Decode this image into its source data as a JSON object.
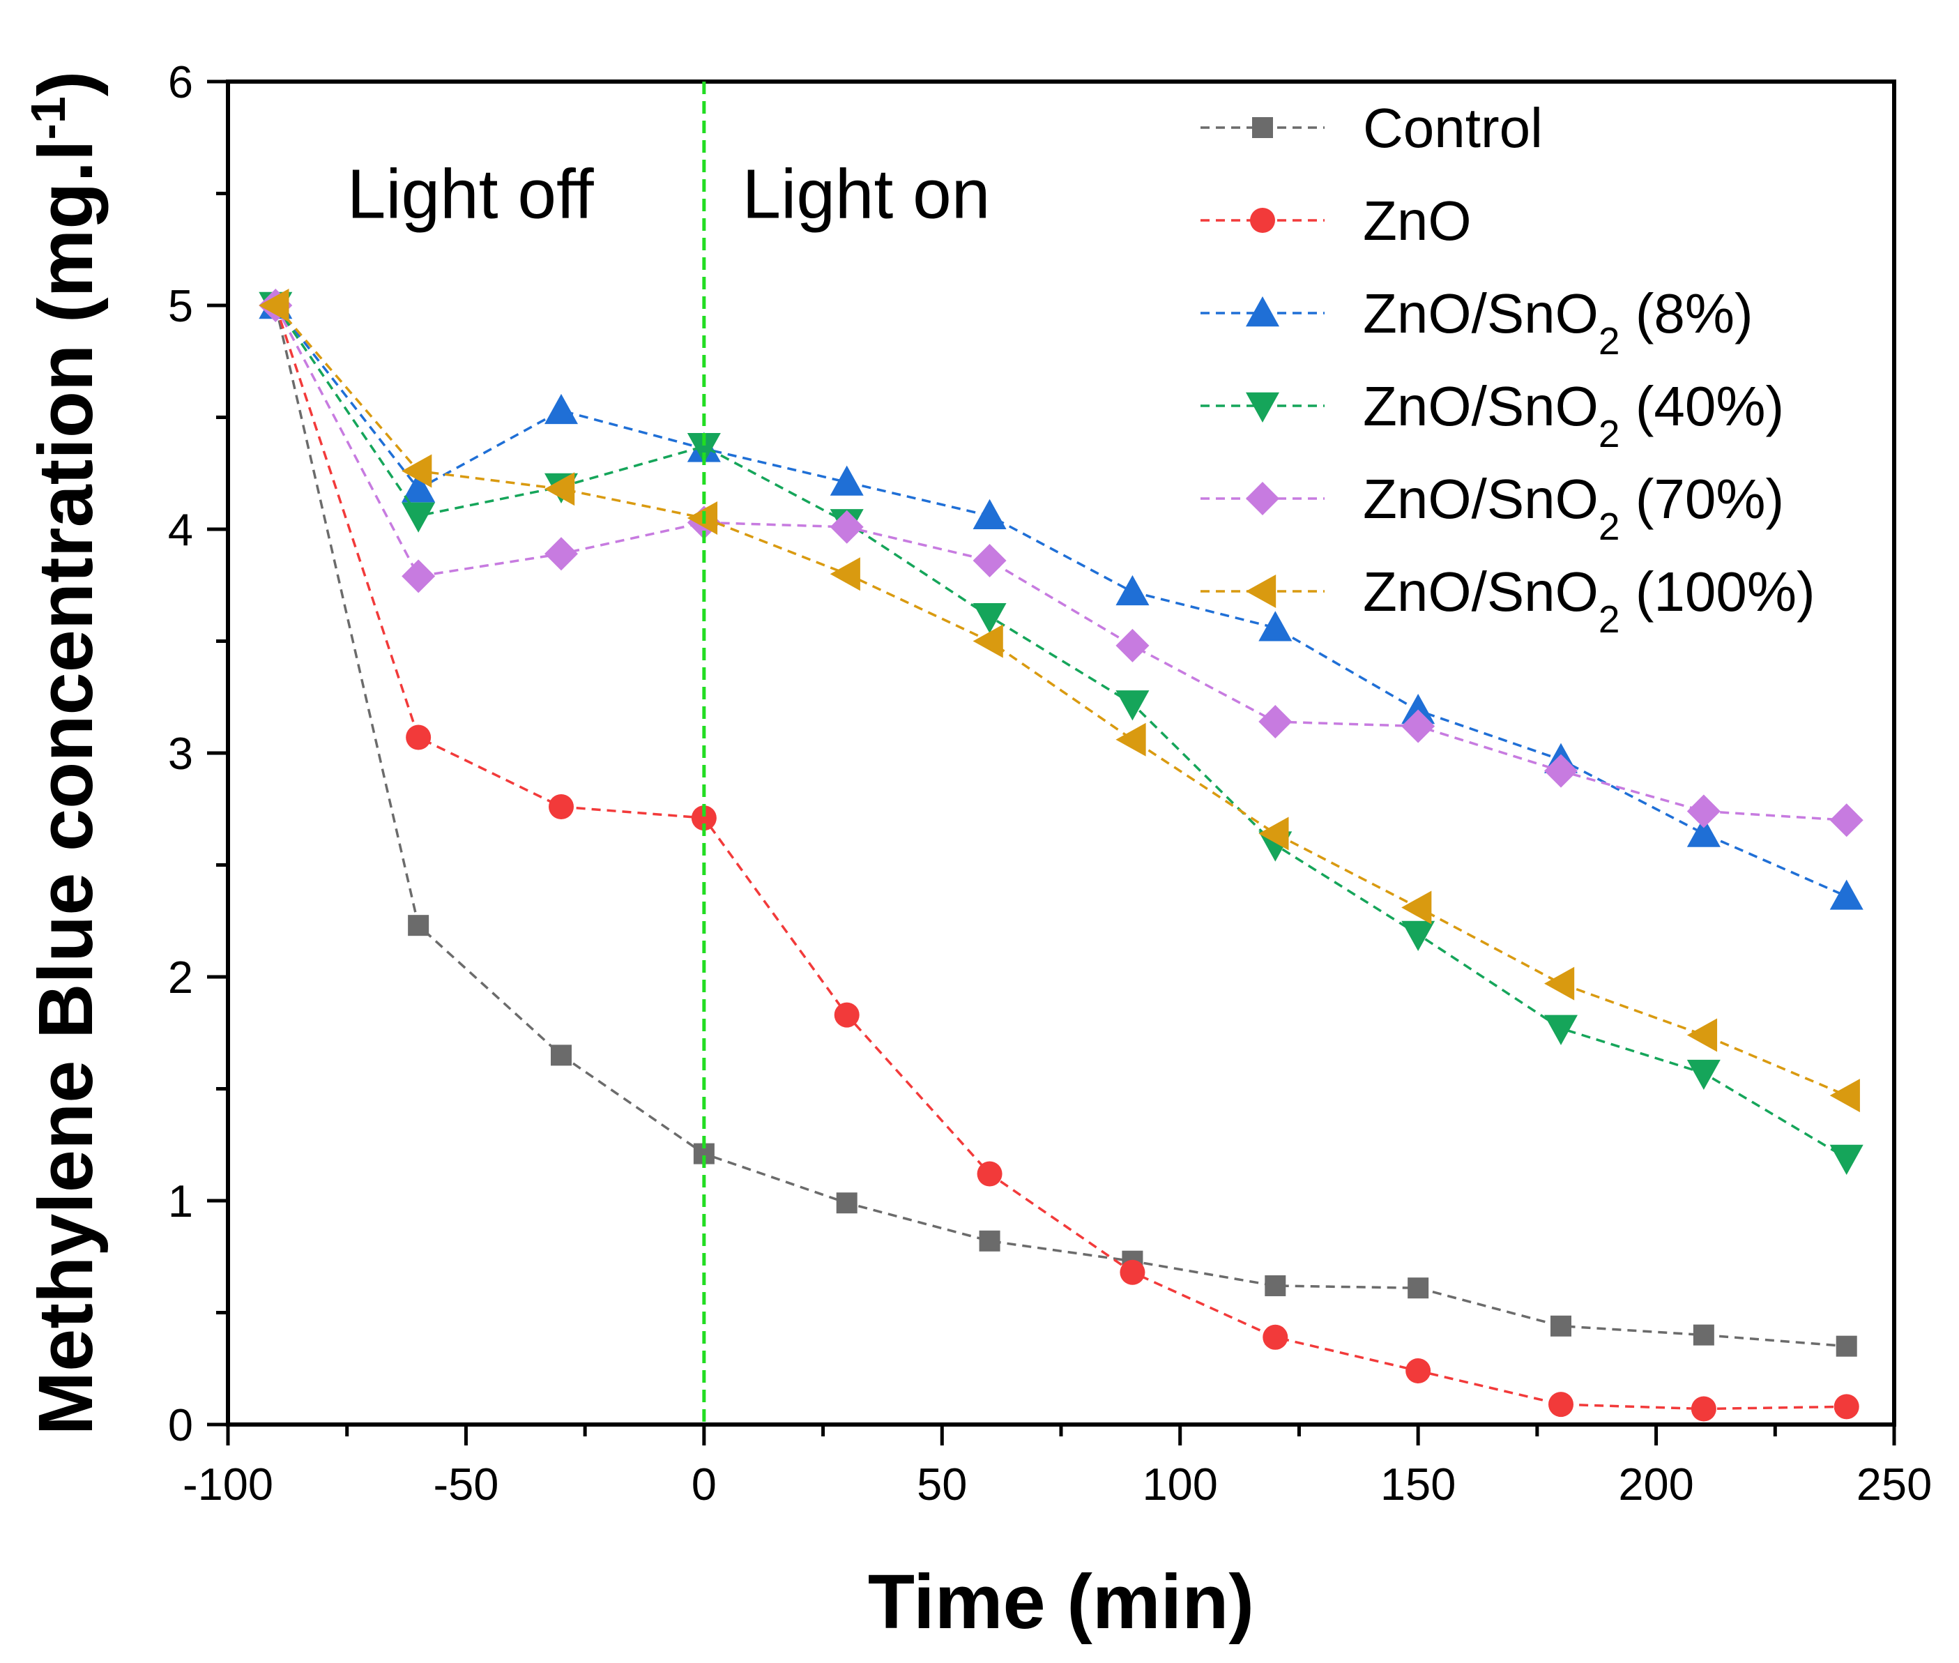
{
  "chart_data": {
    "type": "line",
    "title": "",
    "xlabel": "Time (min)",
    "ylabel_main": "Methylene Blue concentration (mg.l",
    "ylabel_sup": "-1",
    "ylabel_close": ")",
    "xlim": [
      -100,
      250
    ],
    "ylim": [
      0,
      6
    ],
    "xticks": [
      -100,
      -50,
      0,
      50,
      100,
      150,
      200,
      250
    ],
    "yticks": [
      0,
      1,
      2,
      3,
      4,
      5,
      6
    ],
    "x": [
      -90,
      -60,
      -30,
      0,
      30,
      60,
      90,
      120,
      150,
      180,
      210,
      240
    ],
    "divider": {
      "x": 0,
      "color": "#22dd22"
    },
    "annotations": [
      {
        "text": "Light off",
        "x": -75,
        "y": 5.5
      },
      {
        "text": "Light on",
        "x": 8,
        "y": 5.5
      }
    ],
    "legend_position": "top-right",
    "series": [
      {
        "name": "Control",
        "marker": "square",
        "color": "#6b6b6b",
        "values": [
          5.0,
          2.23,
          1.65,
          1.21,
          0.99,
          0.82,
          0.73,
          0.62,
          0.61,
          0.44,
          0.4,
          0.35
        ]
      },
      {
        "name": "ZnO",
        "marker": "circle",
        "color": "#f23a3a",
        "values": [
          5.0,
          3.07,
          2.76,
          2.71,
          1.83,
          1.12,
          0.68,
          0.39,
          0.24,
          0.09,
          0.07,
          0.08
        ]
      },
      {
        "name": "ZnO/SnO",
        "sub": "2",
        "suffix": " (8%)",
        "marker": "triangle-up",
        "color": "#1f6fd6",
        "values": [
          5.0,
          4.18,
          4.53,
          4.36,
          4.21,
          4.06,
          3.72,
          3.56,
          3.19,
          2.97,
          2.64,
          2.36
        ]
      },
      {
        "name": "ZnO/SnO",
        "sub": "2",
        "suffix": " (40%)",
        "marker": "triangle-down",
        "color": "#15a55a",
        "values": [
          5.0,
          4.06,
          4.19,
          4.37,
          4.03,
          3.61,
          3.22,
          2.59,
          2.19,
          1.77,
          1.57,
          1.19
        ]
      },
      {
        "name": "ZnO/SnO",
        "sub": "2",
        "suffix": " (70%)",
        "marker": "diamond",
        "color": "#c77be0",
        "values": [
          5.0,
          3.79,
          3.89,
          4.03,
          4.01,
          3.86,
          3.48,
          3.14,
          3.12,
          2.92,
          2.74,
          2.7
        ]
      },
      {
        "name": "ZnO/SnO",
        "sub": "2",
        "suffix": " (100%)",
        "marker": "triangle-left",
        "color": "#d99a10",
        "values": [
          5.0,
          4.26,
          4.18,
          4.05,
          3.8,
          3.5,
          3.06,
          2.64,
          2.31,
          1.97,
          1.74,
          1.47
        ]
      }
    ]
  }
}
